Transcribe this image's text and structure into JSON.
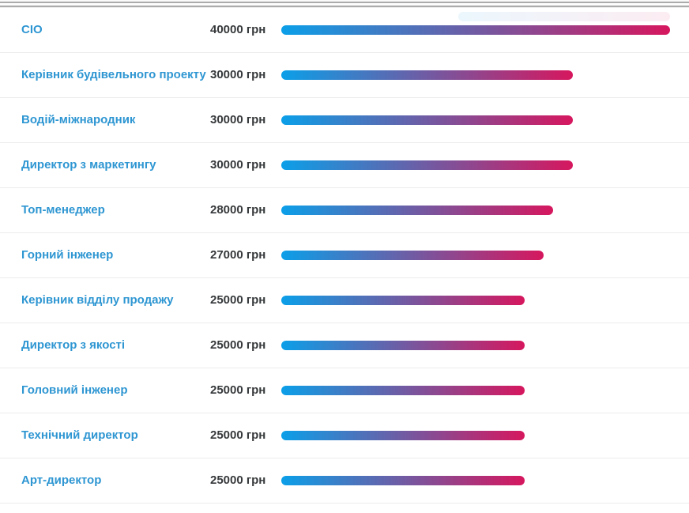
{
  "chart_data": {
    "type": "bar",
    "orientation": "horizontal",
    "unit": "грн",
    "max_value": 40000,
    "xlim": [
      0,
      40000
    ],
    "grid": false,
    "legend": false,
    "categories": [
      "CIO",
      "Керівник будівельного проекту",
      "Водій-міжнародник",
      "Директор з маркетингу",
      "Топ-менеджер",
      "Горний інженер",
      "Керівник відділу продажу",
      "Директор з якості",
      "Головний інженер",
      "Технічний директор",
      "Арт-директор"
    ],
    "values": [
      40000,
      30000,
      30000,
      30000,
      28000,
      27000,
      25000,
      25000,
      25000,
      25000,
      25000
    ],
    "value_labels": [
      "40000 грн",
      "30000 грн",
      "30000 грн",
      "30000 грн",
      "28000 грн",
      "27000 грн",
      "25000 грн",
      "25000 грн",
      "25000 грн",
      "25000 грн",
      "25000 грн"
    ]
  },
  "colors": {
    "job_title_link": "#2e96d2",
    "salary_value_text": "#36393b",
    "bar_gradient_start": "#0b9fe8",
    "bar_gradient_end": "#d6175e",
    "row_divider": "#ececec",
    "top_strip_line": "#ababab"
  }
}
